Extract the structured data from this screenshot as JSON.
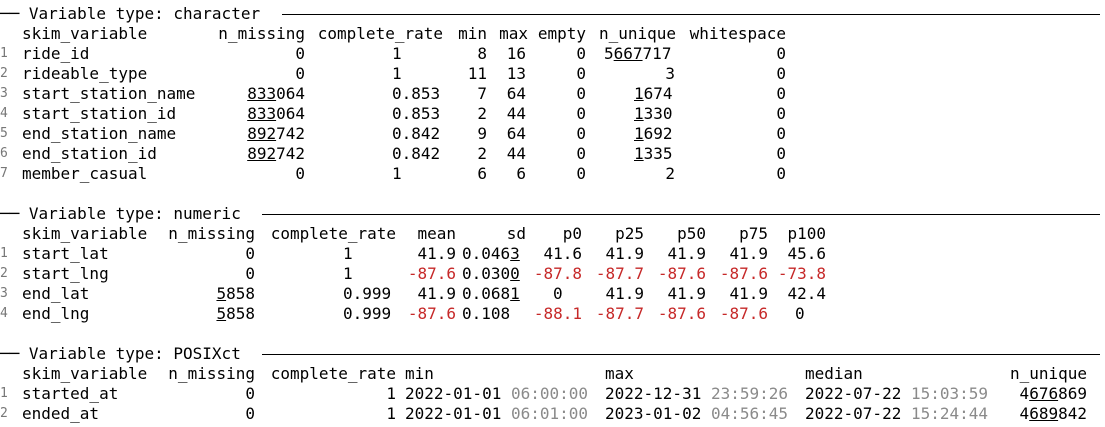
{
  "sections": {
    "character": {
      "title": "── Variable type: character"
    },
    "numeric": {
      "title": "── Variable type: numeric"
    },
    "posix": {
      "title": "── Variable type: POSIXct"
    }
  },
  "char_table": {
    "headers": [
      "skim_variable",
      "n_missing",
      "complete_rate",
      "min",
      "max",
      "empty",
      "n_unique",
      "whitespace"
    ],
    "rows": [
      {
        "n": "1",
        "name": "ride_id",
        "miss_u": "",
        "miss_r": "0",
        "rate": "1",
        "min": "8",
        "max": "16",
        "empty": "0",
        "uniq_a": "5",
        "uniq_u": "667",
        "uniq_r": "717",
        "ws": "0"
      },
      {
        "n": "2",
        "name": "rideable_type",
        "miss_u": "",
        "miss_r": "0",
        "rate": "1",
        "min": "11",
        "max": "13",
        "empty": "0",
        "uniq_a": "",
        "uniq_u": "",
        "uniq_r": "3",
        "ws": "0"
      },
      {
        "n": "3",
        "name": "start_station_name",
        "miss_u": "833",
        "miss_r": "064",
        "rate": "0.853",
        "min": "7",
        "max": "64",
        "empty": "0",
        "uniq_a": "",
        "uniq_u": "1",
        "uniq_r": "674",
        "ws": "0"
      },
      {
        "n": "4",
        "name": "start_station_id",
        "miss_u": "833",
        "miss_r": "064",
        "rate": "0.853",
        "min": "2",
        "max": "44",
        "empty": "0",
        "uniq_a": "",
        "uniq_u": "1",
        "uniq_r": "330",
        "ws": "0"
      },
      {
        "n": "5",
        "name": "end_station_name",
        "miss_u": "892",
        "miss_r": "742",
        "rate": "0.842",
        "min": "9",
        "max": "64",
        "empty": "0",
        "uniq_a": "",
        "uniq_u": "1",
        "uniq_r": "692",
        "ws": "0"
      },
      {
        "n": "6",
        "name": "end_station_id",
        "miss_u": "892",
        "miss_r": "742",
        "rate": "0.842",
        "min": "2",
        "max": "44",
        "empty": "0",
        "uniq_a": "",
        "uniq_u": "1",
        "uniq_r": "335",
        "ws": "0"
      },
      {
        "n": "7",
        "name": "member_casual",
        "miss_u": "",
        "miss_r": "0",
        "rate": "1",
        "min": "6",
        "max": "6",
        "empty": "0",
        "uniq_a": "",
        "uniq_u": "",
        "uniq_r": "2",
        "ws": "0"
      }
    ]
  },
  "num_table": {
    "headers": [
      "skim_variable",
      "n_missing",
      "complete_rate",
      "mean",
      "sd",
      "p0",
      "p25",
      "p50",
      "p75",
      "p100"
    ],
    "rows": [
      {
        "n": "1",
        "name": "start_lat",
        "miss_u": "",
        "miss_r": "0",
        "rate": "1",
        "mean": "41.9",
        "sd_a": "0.046",
        "sd_u": "3",
        "p0": "41.6",
        "p25": "41.9",
        "p50": "41.9",
        "p75": "41.9",
        "p100": "45.6",
        "neg": []
      },
      {
        "n": "2",
        "name": "start_lng",
        "miss_u": "",
        "miss_r": "0",
        "rate": "1",
        "mean": "-87.6",
        "sd_a": "0.030",
        "sd_u": "0",
        "p0": "-87.8",
        "p25": "-87.7",
        "p50": "-87.6",
        "p75": "-87.6",
        "p100": "-73.8",
        "neg": [
          "mean",
          "p0",
          "p25",
          "p50",
          "p75",
          "p100"
        ]
      },
      {
        "n": "3",
        "name": "end_lat",
        "miss_u": "5",
        "miss_r": "858",
        "rate": "0.999",
        "mean": "41.9",
        "sd_a": "0.068",
        "sd_u": "1",
        "p0": "0",
        "p25": "41.9",
        "p50": "41.9",
        "p75": "41.9",
        "p100": "42.4",
        "neg": []
      },
      {
        "n": "4",
        "name": "end_lng",
        "miss_u": "5",
        "miss_r": "858",
        "rate": "0.999",
        "mean": "-87.6",
        "sd_a": "0.108",
        "sd_u": "",
        "p0": "-88.1",
        "p25": "-87.7",
        "p50": "-87.6",
        "p75": "-87.6",
        "p100": "0",
        "neg": [
          "mean",
          "p0",
          "p25",
          "p50",
          "p75"
        ]
      }
    ]
  },
  "posix_table": {
    "headers": [
      "skim_variable",
      "n_missing",
      "complete_rate",
      "min",
      "max",
      "median",
      "n_unique"
    ],
    "rows": [
      {
        "n": "1",
        "name": "started_at",
        "miss": "0",
        "rate": "1",
        "min_d": "2022-01-01",
        "min_t": "06:00:00",
        "max_d": "2022-12-31",
        "max_t": "23:59:26",
        "med_d": "2022-07-22",
        "med_t": "15:03:59",
        "uniq_a": "4",
        "uniq_u": "676",
        "uniq_r": "869"
      },
      {
        "n": "2",
        "name": "ended_at",
        "miss": "0",
        "rate": "1",
        "min_d": "2022-01-01",
        "min_t": "06:01:00",
        "max_d": "2023-01-02",
        "max_t": "04:56:45",
        "med_d": "2022-07-22",
        "med_t": "15:24:44",
        "uniq_a": "4",
        "uniq_u": "689",
        "uniq_r": "842"
      }
    ]
  },
  "colors": {
    "negative": "#c62828",
    "dim_time": "#8a8a8a",
    "rownum": "#777777"
  }
}
